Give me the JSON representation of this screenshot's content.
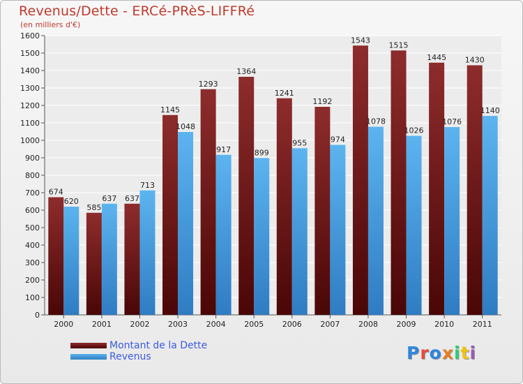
{
  "title": "Revenus/Dette - ERCé-PRèS-LIFFRé",
  "subtitle": "(en milliers d'€)",
  "logo": "Proxiti",
  "logo_colors": [
    "#2e86de",
    "#e74c3c",
    "#2e86de",
    "#e67e22",
    "#2ecc71",
    "#f1c40f",
    "#9b59b6"
  ],
  "chart_data": {
    "type": "bar",
    "categories": [
      "2000",
      "2001",
      "2002",
      "2003",
      "2004",
      "2005",
      "2006",
      "2007",
      "2008",
      "2009",
      "2010",
      "2011"
    ],
    "series": [
      {
        "name": "Montant de la Dette",
        "color": "#7a1a1a",
        "values": [
          674,
          585,
          637,
          1145,
          1293,
          1364,
          1241,
          1192,
          1543,
          1515,
          1445,
          1430
        ]
      },
      {
        "name": "Revenus",
        "color": "#4ba3e3",
        "values": [
          620,
          637,
          713,
          1048,
          917,
          899,
          955,
          974,
          1078,
          1026,
          1076,
          1140
        ]
      }
    ],
    "ylim": [
      0,
      1600
    ],
    "yticks": [
      0,
      100,
      200,
      300,
      400,
      500,
      600,
      700,
      800,
      900,
      1000,
      1100,
      1200,
      1300,
      1400,
      1500,
      1600
    ],
    "grid": true,
    "legend_position": "bottom-left"
  }
}
